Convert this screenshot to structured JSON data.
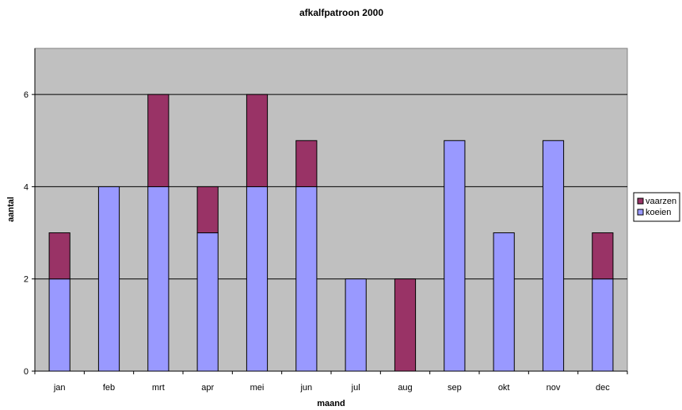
{
  "chart_data": {
    "type": "bar",
    "stacked": true,
    "title": "afkalfpatroon 2000",
    "xlabel": "maand",
    "ylabel": "aantal",
    "categories": [
      "jan",
      "feb",
      "mrt",
      "apr",
      "mei",
      "jun",
      "jul",
      "aug",
      "sep",
      "okt",
      "nov",
      "dec"
    ],
    "series": [
      {
        "name": "koeien",
        "color": "#9999ff",
        "values": [
          2,
          4,
          4,
          3,
          4,
          4,
          2,
          0,
          5,
          3,
          5,
          2
        ]
      },
      {
        "name": "vaarzen",
        "color": "#993366",
        "values": [
          1,
          0,
          2,
          1,
          2,
          1,
          0,
          2,
          0,
          0,
          0,
          1
        ]
      }
    ],
    "legend_order": [
      "vaarzen",
      "koeien"
    ],
    "ylim": [
      0,
      7
    ],
    "yticks": [
      0,
      2,
      4,
      6
    ],
    "grid": true,
    "plot_background": "#c0c0c0",
    "legend_position": "right"
  }
}
